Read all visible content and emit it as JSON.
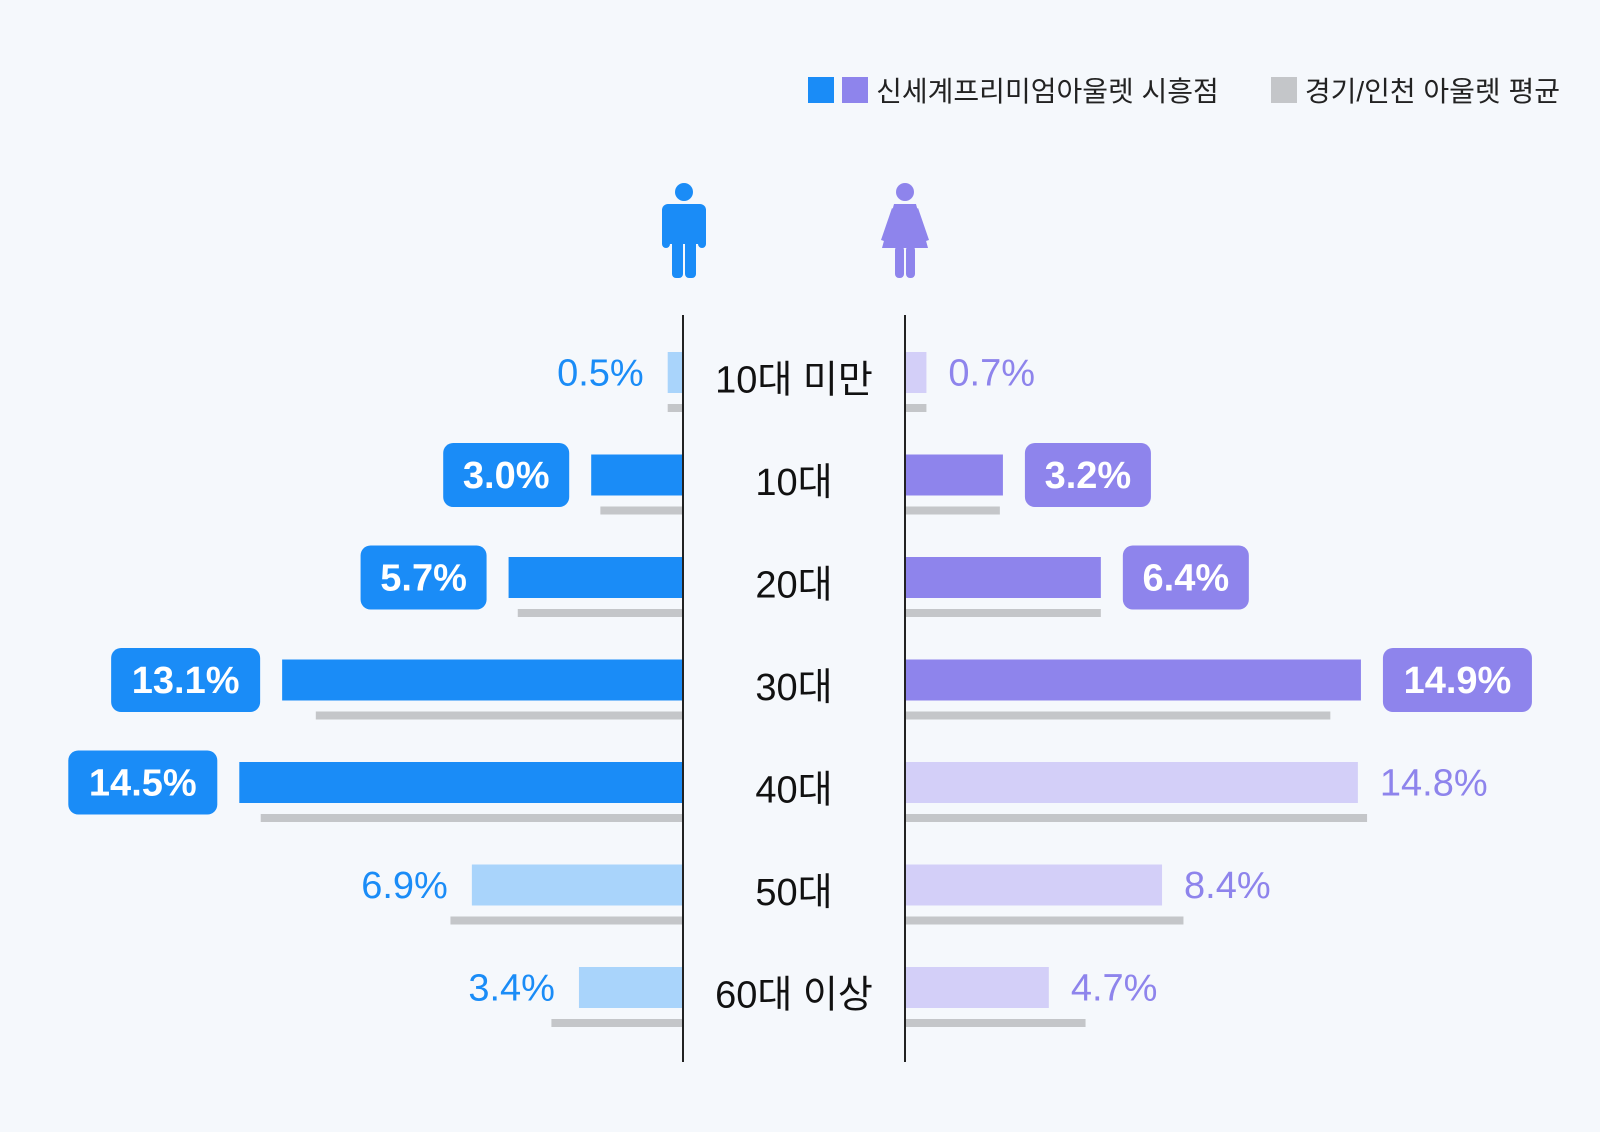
{
  "legend": {
    "primary_label": "신세계프리미엄아울렛 시흥점",
    "secondary_label": "경기/인천 아울렛 평균"
  },
  "colors": {
    "male": "#1a8cf7",
    "male_light": "#a9d4fb",
    "female": "#8e84ec",
    "female_light": "#d3cff8",
    "average": "#c4c6c9",
    "axis": "#222222",
    "background": "#f5f8fc"
  },
  "icons": {
    "male": "male-person-icon",
    "female": "female-person-icon"
  },
  "chart_data": {
    "type": "bar",
    "orientation": "horizontal-pyramid",
    "categories": [
      "10대 미만",
      "10대",
      "20대",
      "30대",
      "40대",
      "50대",
      "60대 이상"
    ],
    "series": [
      {
        "name": "신세계프리미엄아울렛 시흥점",
        "group": "male",
        "values": [
          0.5,
          3.0,
          5.7,
          13.1,
          14.5,
          6.9,
          3.4
        ],
        "labels": [
          "0.5%",
          "3.0%",
          "5.7%",
          "13.1%",
          "14.5%",
          "6.9%",
          "3.4%"
        ],
        "highlight": [
          false,
          true,
          true,
          true,
          true,
          false,
          false
        ]
      },
      {
        "name": "신세계프리미엄아울렛 시흥점",
        "group": "female",
        "values": [
          0.7,
          3.2,
          6.4,
          14.9,
          14.8,
          8.4,
          4.7
        ],
        "labels": [
          "0.7%",
          "3.2%",
          "6.4%",
          "14.9%",
          "14.8%",
          "8.4%",
          "4.7%"
        ],
        "highlight": [
          false,
          true,
          true,
          true,
          false,
          false,
          false
        ]
      },
      {
        "name": "경기/인천 아울렛 평균",
        "group": "male",
        "values": [
          0.5,
          2.7,
          5.4,
          12.0,
          13.8,
          7.6,
          4.3
        ]
      },
      {
        "name": "경기/인천 아울렛 평균",
        "group": "female",
        "values": [
          0.7,
          3.1,
          6.4,
          13.9,
          15.1,
          9.1,
          5.9
        ]
      }
    ],
    "xlim": [
      0,
      16
    ],
    "grid": false,
    "legend_position": "top-right"
  }
}
